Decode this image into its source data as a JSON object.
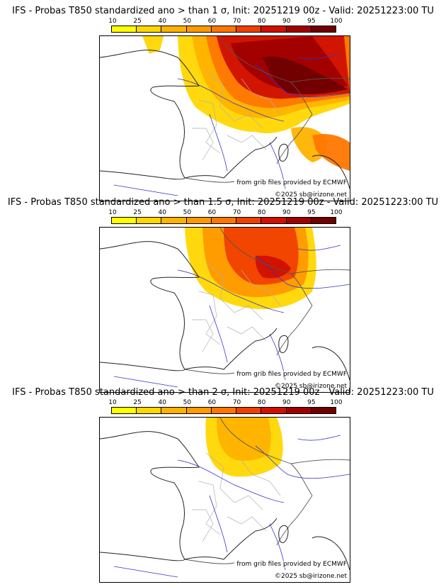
{
  "panels": [
    {
      "title": "IFS - Probas T850  standardized ano > than 1 σ, Init: 20251219 00z - Valid: 20251223:00 TU",
      "intensity": "high",
      "source_credit": "from grib files provided by ECMWF",
      "copyright": "©2025 sb@irizone.net"
    },
    {
      "title": "IFS - Probas T850  standardized ano > than 1.5 σ, Init: 20251219 00z - Valid: 20251223:00 TU",
      "intensity": "medium",
      "source_credit": "from grib files provided by ECMWF",
      "copyright": "©2025 sb@irizone.net"
    },
    {
      "title": "IFS - Probas T850  standardized ano > than 2 σ, Init: 20251219 00z - Valid: 20251223:00 TU",
      "intensity": "low",
      "source_credit": "from grib files provided by ECMWF",
      "copyright": "©2025 sb@irizone.net"
    }
  ],
  "colorbar": {
    "ticks": [
      "10",
      "25",
      "40",
      "50",
      "60",
      "70",
      "80",
      "90",
      "95",
      "100"
    ],
    "colors": [
      "#ffff00",
      "#ffd700",
      "#ffb300",
      "#ff9900",
      "#ff7700",
      "#f04000",
      "#d01000",
      "#a00000",
      "#700000"
    ]
  },
  "map_colors": {
    "land_border": "#555555",
    "admin_border": "#b0b0b0",
    "river": "#3333cc"
  }
}
